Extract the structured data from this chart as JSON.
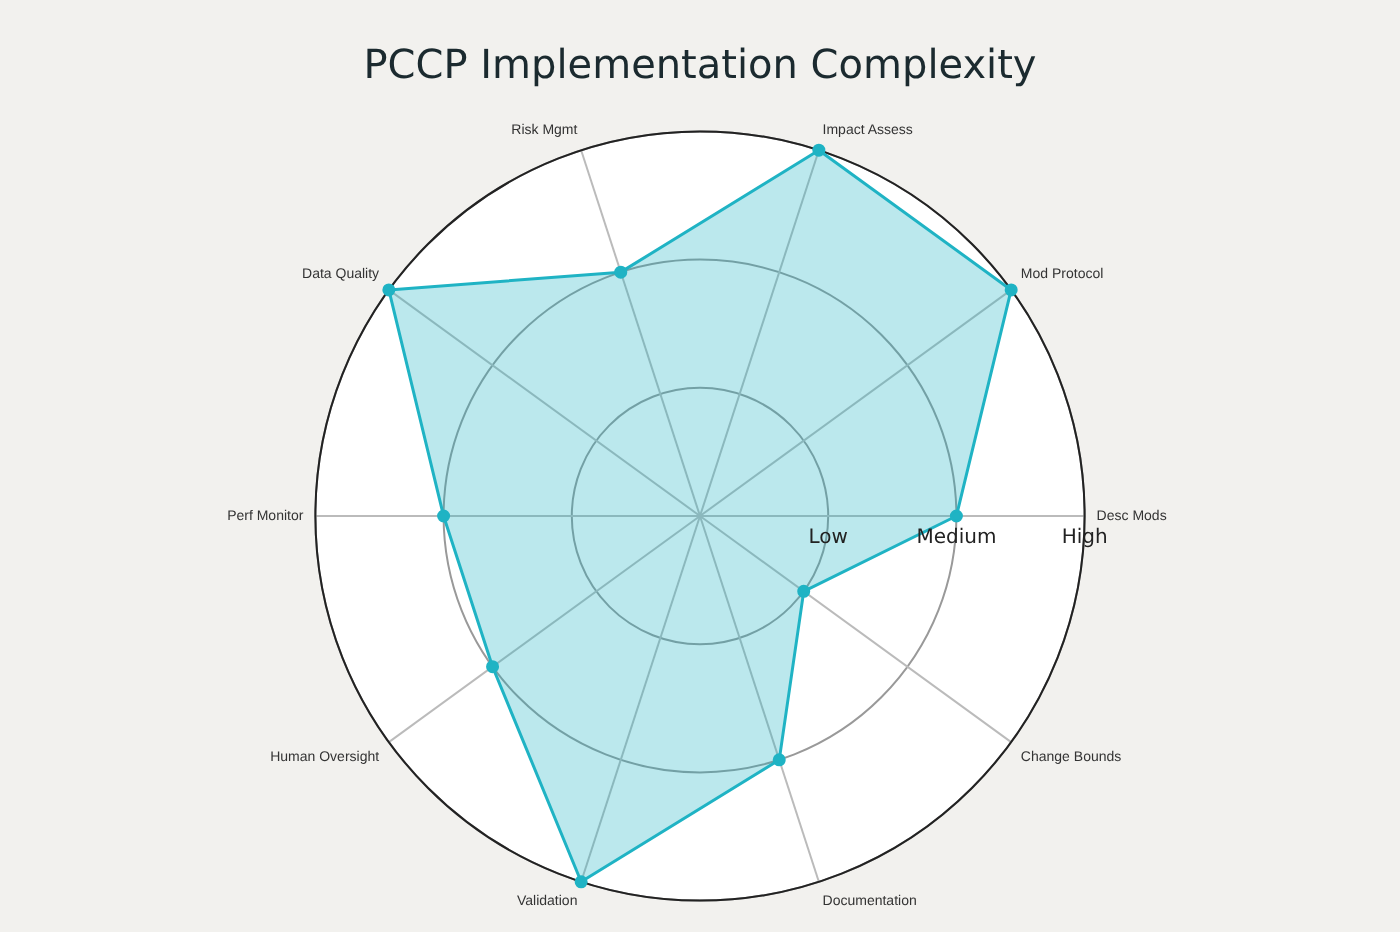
{
  "chart_data": {
    "type": "radar",
    "title": "PCCP Implementation Complexity",
    "categories": [
      "Impact Assess",
      "Mod Protocol",
      "Desc Mods",
      "Change Bounds",
      "Documentation",
      "Validation",
      "Human Oversight",
      "Perf Monitor",
      "Data Quality",
      "Risk Mgmt"
    ],
    "series": [
      {
        "color": "#1fb3c4",
        "values": [
          3,
          3,
          2,
          1,
          2,
          3,
          2,
          2,
          3,
          2
        ]
      }
    ],
    "ylim": [
      0,
      3
    ],
    "yticks": [
      {
        "value": 1,
        "label": "Low"
      },
      {
        "value": 2,
        "label": "Medium"
      },
      {
        "value": 3,
        "label": "High"
      }
    ],
    "grid": true,
    "legend": false,
    "marker": "circle"
  }
}
